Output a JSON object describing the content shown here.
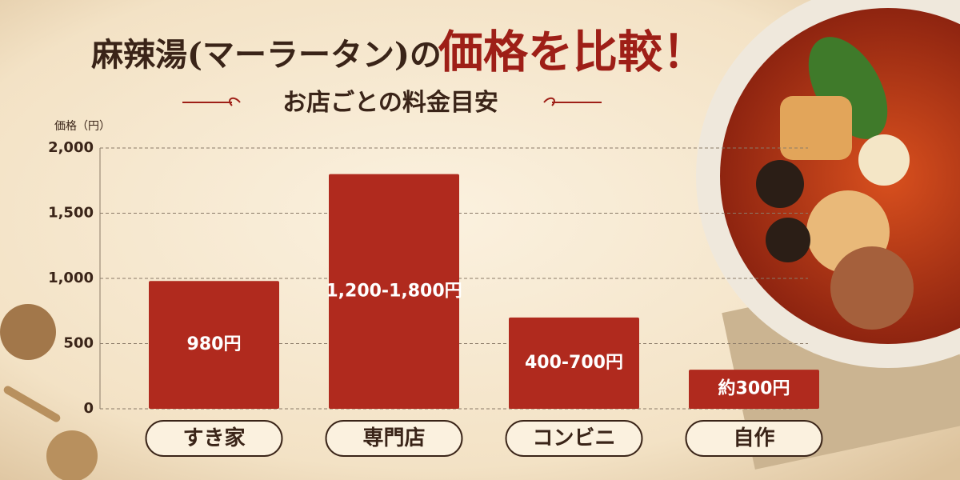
{
  "chart_data": {
    "type": "bar",
    "title_part1": "麻辣湯(マーラータン)の",
    "title_part2": "価格を比較！",
    "subtitle": "お店ごとの料金目安",
    "y_axis_label": "価格（円）",
    "categories": [
      "すき家",
      "専門店",
      "コンビニ",
      "自作"
    ],
    "values": [
      980,
      1800,
      700,
      300
    ],
    "value_labels": [
      "980円",
      "1,200-1,800円",
      "400-700円",
      "約300円"
    ],
    "color": "#b02a1e",
    "ylim": [
      0,
      2000
    ],
    "yticks": [
      0,
      500,
      {
        "value": 1000,
        "label": "1,000"
      },
      {
        "value": 1500,
        "label": "1,500"
      },
      {
        "value": 2000,
        "label": "2,000"
      }
    ],
    "grid": true
  }
}
